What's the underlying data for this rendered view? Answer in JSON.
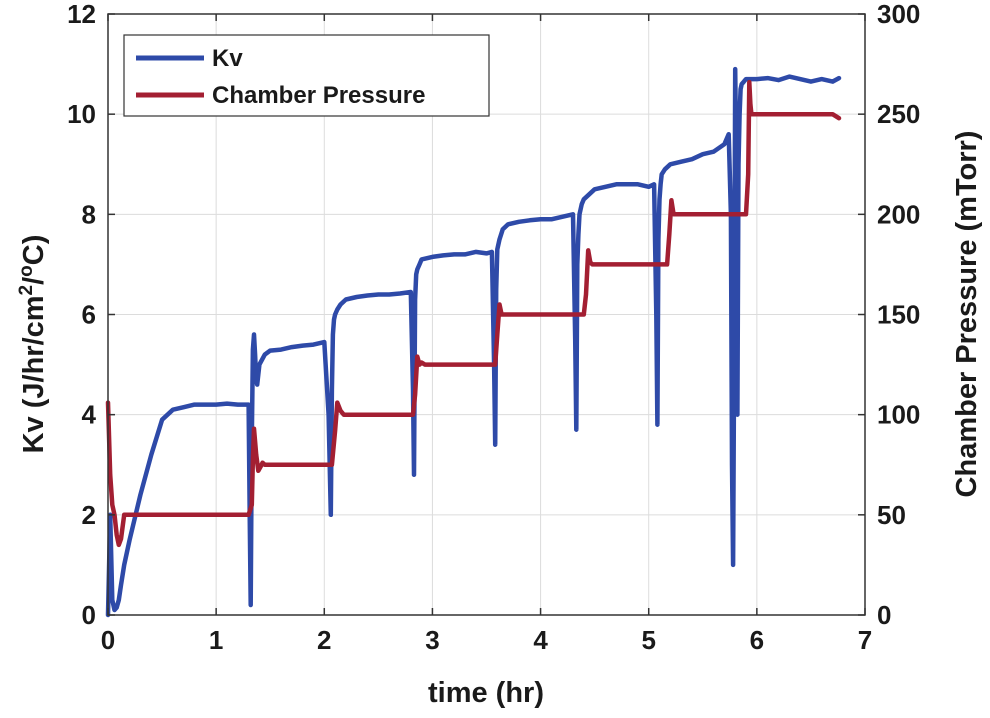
{
  "chart_data": {
    "type": "line",
    "xlabel": "time (hr)",
    "ylabel_left": {
      "pre": "Kv (J/hr/cm",
      "sup1": "2",
      "mid": "/",
      "sup2": "o",
      "post": "C)"
    },
    "ylabel_right": "Chamber Pressure (mTorr)",
    "xlim": [
      0,
      7
    ],
    "ylim_left": [
      0,
      12
    ],
    "ylim_right": [
      0,
      300
    ],
    "x_ticks": [
      "0",
      "1",
      "2",
      "3",
      "4",
      "5",
      "6",
      "7"
    ],
    "y_ticks_left": [
      "0",
      "2",
      "4",
      "6",
      "8",
      "10",
      "12"
    ],
    "y_ticks_right": [
      "0",
      "50",
      "100",
      "150",
      "200",
      "250",
      "300"
    ],
    "grid": true,
    "legend_position": "top-left",
    "series": [
      {
        "name": "Kv",
        "axis": "left",
        "color": "#2e4aa8",
        "x": [
          0.0,
          0.02,
          0.04,
          0.06,
          0.08,
          0.1,
          0.12,
          0.15,
          0.2,
          0.3,
          0.4,
          0.5,
          0.6,
          0.7,
          0.8,
          0.9,
          1.0,
          1.1,
          1.2,
          1.3,
          1.31,
          1.32,
          1.33,
          1.34,
          1.35,
          1.36,
          1.37,
          1.38,
          1.4,
          1.45,
          1.5,
          1.6,
          1.7,
          1.8,
          1.9,
          2.0,
          2.04,
          2.06,
          2.07,
          2.08,
          2.09,
          2.1,
          2.12,
          2.15,
          2.2,
          2.3,
          2.4,
          2.5,
          2.6,
          2.7,
          2.8,
          2.82,
          2.83,
          2.84,
          2.85,
          2.86,
          2.88,
          2.9,
          3.0,
          3.1,
          3.2,
          3.3,
          3.4,
          3.5,
          3.55,
          3.57,
          3.58,
          3.59,
          3.6,
          3.62,
          3.65,
          3.7,
          3.8,
          3.9,
          4.0,
          4.1,
          4.2,
          4.3,
          4.32,
          4.33,
          4.34,
          4.35,
          4.36,
          4.38,
          4.4,
          4.45,
          4.5,
          4.6,
          4.7,
          4.8,
          4.9,
          5.0,
          5.05,
          5.07,
          5.08,
          5.09,
          5.1,
          5.11,
          5.12,
          5.15,
          5.2,
          5.3,
          5.4,
          5.5,
          5.6,
          5.7,
          5.74,
          5.76,
          5.77,
          5.78,
          5.79,
          5.8,
          5.81,
          5.82,
          5.83,
          5.84,
          5.85,
          5.86,
          5.88,
          5.9,
          6.0,
          6.1,
          6.2,
          6.3,
          6.4,
          6.5,
          6.6,
          6.7,
          6.76
        ],
        "values": [
          0.0,
          2.0,
          0.3,
          0.1,
          0.15,
          0.3,
          0.6,
          1.0,
          1.5,
          2.4,
          3.2,
          3.9,
          4.1,
          4.15,
          4.2,
          4.2,
          4.2,
          4.22,
          4.2,
          4.2,
          2.0,
          0.2,
          3.5,
          5.3,
          5.6,
          5.2,
          4.7,
          4.6,
          5.0,
          5.2,
          5.28,
          5.3,
          5.35,
          5.38,
          5.4,
          5.45,
          4.0,
          2.0,
          4.5,
          5.6,
          5.9,
          6.0,
          6.1,
          6.2,
          6.3,
          6.35,
          6.38,
          6.4,
          6.4,
          6.42,
          6.45,
          4.5,
          2.8,
          6.3,
          6.8,
          6.9,
          7.0,
          7.1,
          7.15,
          7.18,
          7.2,
          7.2,
          7.25,
          7.22,
          7.25,
          5.0,
          3.4,
          6.5,
          7.3,
          7.5,
          7.7,
          7.8,
          7.85,
          7.88,
          7.9,
          7.9,
          7.95,
          8.0,
          5.5,
          3.7,
          7.0,
          7.6,
          8.0,
          8.2,
          8.3,
          8.4,
          8.5,
          8.55,
          8.6,
          8.6,
          8.6,
          8.55,
          8.6,
          6.0,
          3.8,
          7.5,
          8.3,
          8.6,
          8.8,
          8.9,
          9.0,
          9.05,
          9.1,
          9.2,
          9.25,
          9.4,
          9.6,
          8.0,
          3.0,
          1.0,
          5.0,
          10.9,
          9.0,
          4.0,
          9.0,
          10.0,
          10.5,
          10.6,
          10.65,
          10.7,
          10.7,
          10.72,
          10.68,
          10.75,
          10.7,
          10.65,
          10.7,
          10.65,
          10.72
        ]
      },
      {
        "name": "Chamber Pressure",
        "axis": "right",
        "color": "#a31f32",
        "x": [
          0.0,
          0.02,
          0.04,
          0.06,
          0.08,
          0.1,
          0.12,
          0.15,
          0.2,
          0.5,
          0.8,
          1.0,
          1.2,
          1.3,
          1.33,
          1.34,
          1.35,
          1.37,
          1.39,
          1.41,
          1.43,
          1.45,
          1.5,
          2.0,
          2.07,
          2.1,
          2.12,
          2.15,
          2.18,
          2.2,
          2.82,
          2.84,
          2.86,
          2.88,
          2.9,
          2.93,
          3.58,
          3.6,
          3.62,
          3.64,
          3.66,
          3.7,
          4.4,
          4.42,
          4.44,
          4.46,
          4.48,
          4.5,
          5.17,
          5.19,
          5.21,
          5.23,
          5.25,
          5.27,
          5.9,
          5.92,
          5.93,
          5.94,
          5.95,
          5.97,
          6.1,
          6.3,
          6.5,
          6.7,
          6.76
        ],
        "values": [
          106,
          70,
          55,
          50,
          40,
          35,
          38,
          50,
          50,
          50,
          50,
          50,
          50,
          50,
          55,
          78,
          93,
          80,
          72,
          74,
          76,
          75,
          75,
          75,
          75,
          92,
          106,
          102,
          100,
          100,
          100,
          110,
          129,
          125,
          126,
          125,
          125,
          140,
          155,
          150,
          150,
          150,
          150,
          160,
          182,
          176,
          175,
          175,
          175,
          190,
          207,
          200,
          200,
          200,
          200,
          220,
          266,
          255,
          250,
          250,
          250,
          250,
          250,
          250,
          248
        ]
      }
    ]
  }
}
